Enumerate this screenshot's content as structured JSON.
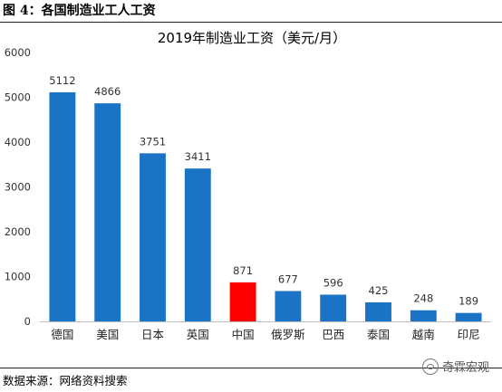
{
  "figure_title": "图 4：各国制造业工人工资",
  "source": "数据来源：网络资料搜索",
  "watermark": "奇霖宏观",
  "chart_data": {
    "type": "bar",
    "title": "2019年制造业工资（美元/月）",
    "xlabel": "",
    "ylabel": "",
    "categories": [
      "德国",
      "美国",
      "日本",
      "英国",
      "中国",
      "俄罗斯",
      "巴西",
      "泰国",
      "越南",
      "印尼"
    ],
    "values": [
      5112,
      4866,
      3751,
      3411,
      871,
      677,
      596,
      425,
      248,
      189
    ],
    "ylim": [
      0,
      6000
    ],
    "yticks": [
      0,
      1000,
      2000,
      3000,
      4000,
      5000,
      6000
    ],
    "grid": false,
    "legend": "none",
    "bar_color": "#1a73c4",
    "highlight_color": "#ff0000",
    "highlight_category": "中国"
  }
}
